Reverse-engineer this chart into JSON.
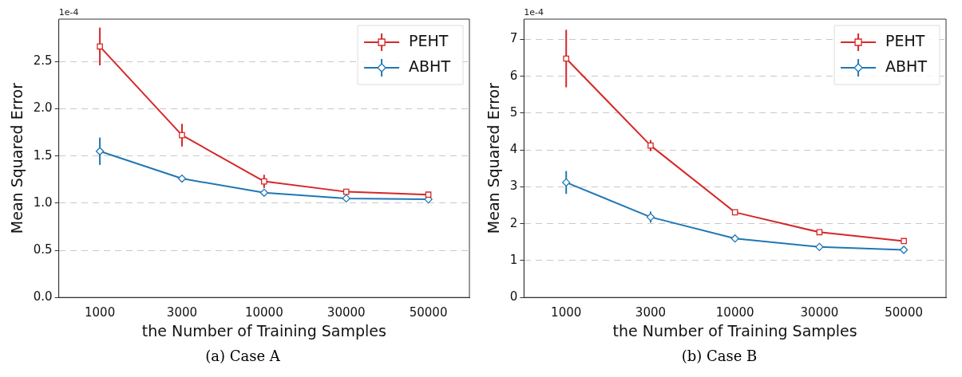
{
  "chart_data": [
    {
      "type": "line",
      "title": "(a) Case A",
      "xlabel": "the Number of Training Samples",
      "ylabel": "Mean Squared Error",
      "annotations": [
        "1e-4"
      ],
      "categories": [
        "1000",
        "3000",
        "10000",
        "30000",
        "50000"
      ],
      "series": [
        {
          "name": "PEHT",
          "color": "#d62728",
          "marker": "square",
          "values": [
            2.66,
            1.72,
            1.23,
            1.12,
            1.09
          ],
          "errors": [
            0.2,
            0.12,
            0.07,
            null,
            null
          ]
        },
        {
          "name": "ABHT",
          "color": "#1f77b4",
          "marker": "diamond",
          "values": [
            1.55,
            1.26,
            1.11,
            1.05,
            1.04
          ],
          "errors": [
            0.145,
            null,
            null,
            null,
            null
          ]
        }
      ],
      "ylim": [
        0,
        2.95
      ],
      "yticks": [
        {
          "value": 0,
          "label": "0.0"
        },
        0.5,
        {
          "value": 1,
          "label": "1.0"
        },
        1.5,
        {
          "value": 2,
          "label": "2.0"
        },
        2.5
      ],
      "grid": "y",
      "legend": "top right",
      "line_style": "solid"
    },
    {
      "type": "line",
      "title": "(b) Case B",
      "xlabel": "the Number of Training Samples",
      "ylabel": "Mean Squared Error",
      "annotations": [
        "1e-4"
      ],
      "categories": [
        "1000",
        "3000",
        "10000",
        "30000",
        "50000"
      ],
      "series": [
        {
          "name": "PEHT",
          "color": "#d62728",
          "marker": "square",
          "values": [
            6.48,
            4.12,
            2.31,
            1.77,
            1.53
          ],
          "errors": [
            0.78,
            0.15,
            null,
            null,
            null
          ]
        },
        {
          "name": "ABHT",
          "color": "#1f77b4",
          "marker": "diamond",
          "values": [
            3.12,
            2.18,
            1.6,
            1.37,
            1.29
          ],
          "errors": [
            0.31,
            0.15,
            null,
            null,
            null
          ]
        }
      ],
      "ylim": [
        0,
        7.55
      ],
      "yticks": [
        0,
        1,
        2,
        3,
        4,
        5,
        6,
        7
      ],
      "grid": "y",
      "legend": "top right",
      "line_style": "solid"
    }
  ]
}
